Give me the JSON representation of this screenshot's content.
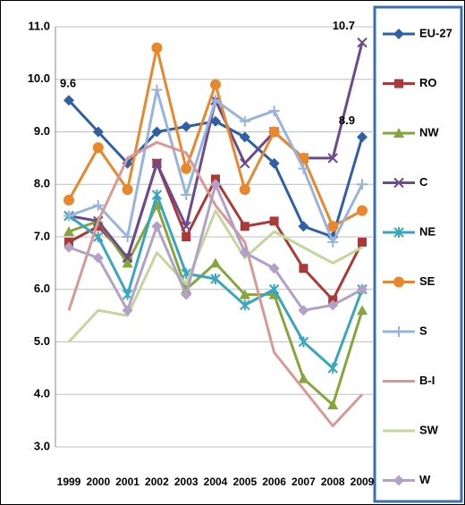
{
  "chart_data": {
    "type": "line",
    "categories": [
      "1999",
      "2000",
      "2001",
      "2002",
      "2003",
      "2004",
      "2005",
      "2006",
      "2007",
      "2008",
      "2009"
    ],
    "ylim": [
      3,
      11
    ],
    "yticks": [
      {
        "value": 3,
        "label": "3.0"
      },
      {
        "value": 4,
        "label": "4.0"
      },
      {
        "value": 5,
        "label": "5.0"
      },
      {
        "value": 6,
        "label": "6.0"
      },
      {
        "value": 7,
        "label": "7.0"
      },
      {
        "value": 8,
        "label": "8.0"
      },
      {
        "value": 9,
        "label": "9.0"
      },
      {
        "value": 10,
        "label": "10.0"
      },
      {
        "value": 11,
        "label": "11.0"
      }
    ],
    "grid": true,
    "legend": "right",
    "series": [
      {
        "name": "EU-27",
        "color": "#2f5fa5",
        "marker": "diamond",
        "values": [
          9.6,
          9.0,
          8.4,
          9.0,
          9.1,
          9.2,
          8.9,
          8.4,
          7.2,
          7.0,
          8.9
        ]
      },
      {
        "name": "RO",
        "color": "#a93a37",
        "marker": "square",
        "values": [
          6.9,
          7.2,
          6.6,
          8.4,
          7.0,
          8.1,
          7.2,
          7.3,
          6.4,
          5.8,
          6.9
        ]
      },
      {
        "name": "NW",
        "color": "#86a63c",
        "marker": "triangle",
        "values": [
          7.1,
          7.3,
          6.5,
          7.6,
          6.0,
          6.5,
          5.9,
          5.9,
          4.3,
          3.8,
          5.6
        ]
      },
      {
        "name": "C",
        "color": "#6c4a8e",
        "marker": "x",
        "values": [
          7.4,
          7.3,
          6.6,
          8.4,
          7.2,
          9.6,
          8.4,
          9.0,
          8.5,
          8.5,
          10.7
        ]
      },
      {
        "name": "NE",
        "color": "#3aa6bd",
        "marker": "star",
        "values": [
          7.4,
          7.0,
          5.9,
          7.8,
          6.3,
          6.2,
          5.7,
          6.0,
          5.0,
          4.5,
          6.0
        ]
      },
      {
        "name": "SE",
        "color": "#e8872b",
        "marker": "circle",
        "values": [
          7.7,
          8.7,
          7.9,
          10.6,
          8.3,
          9.9,
          7.9,
          9.0,
          8.5,
          7.2,
          7.5
        ]
      },
      {
        "name": "S",
        "color": "#98b4dc",
        "marker": "plus",
        "values": [
          7.4,
          7.6,
          7.0,
          9.8,
          7.8,
          9.6,
          9.2,
          9.4,
          8.3,
          6.9,
          8.0
        ]
      },
      {
        "name": "B-I",
        "color": "#d99896",
        "marker": "none",
        "values": [
          5.6,
          7.3,
          8.5,
          8.8,
          8.6,
          7.6,
          6.9,
          4.8,
          4.1,
          3.4,
          4.0
        ]
      },
      {
        "name": "SW",
        "color": "#c3d69b",
        "marker": "none",
        "values": [
          5.0,
          5.6,
          5.5,
          6.7,
          6.1,
          7.5,
          6.6,
          7.1,
          6.8,
          6.5,
          6.8
        ]
      },
      {
        "name": "W",
        "color": "#b2a1c7",
        "marker": "diamond",
        "values": [
          6.8,
          6.6,
          5.6,
          7.2,
          5.9,
          8.0,
          6.7,
          6.4,
          5.6,
          5.7,
          6.0
        ]
      }
    ],
    "annotations": [
      {
        "series": 0,
        "index": 0
      },
      {
        "series": 3,
        "index": 10
      },
      {
        "series": 0,
        "index": 10
      }
    ]
  }
}
